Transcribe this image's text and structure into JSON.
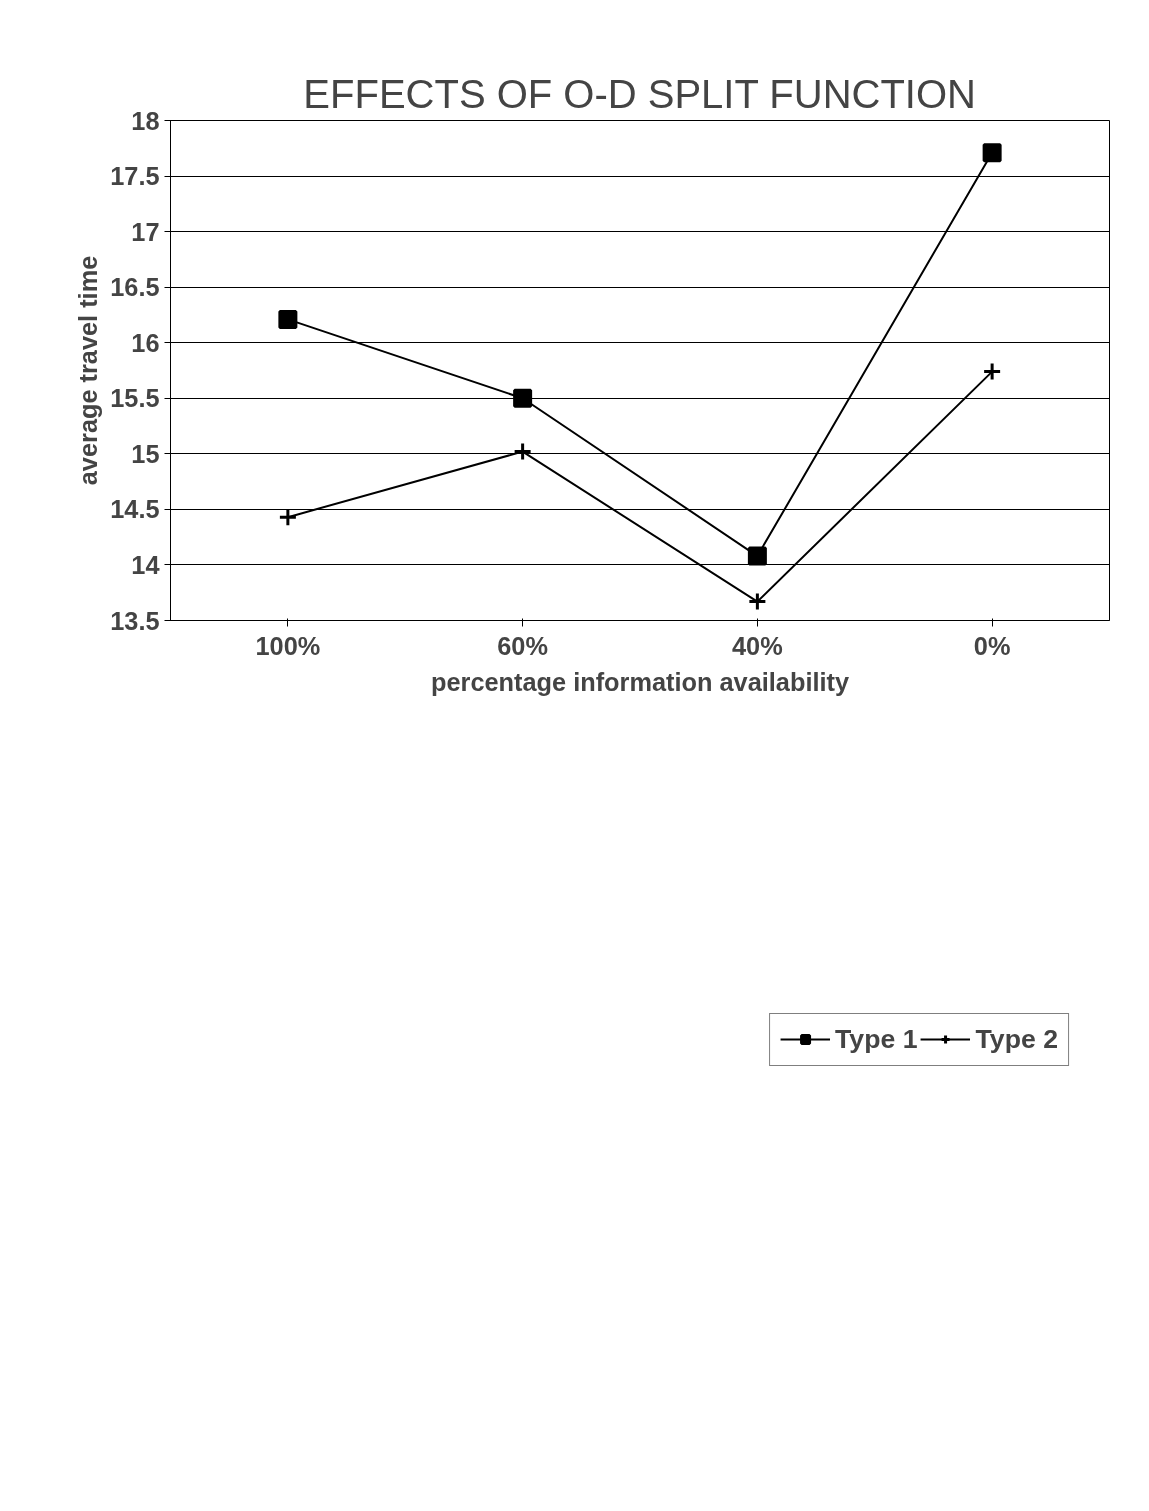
{
  "chart_data": {
    "type": "line",
    "title": "EFFECTS OF O-D SPLIT FUNCTION",
    "xlabel": "percentage information availability",
    "ylabel": "average travel time",
    "categories": [
      "100%",
      "60%",
      "40%",
      "0%"
    ],
    "series": [
      {
        "name": "Type 1",
        "color": "#000000",
        "marker": "square",
        "values": [
          16.21,
          15.5,
          14.08,
          17.71
        ]
      },
      {
        "name": "Type 2",
        "color": "#000000",
        "marker": "cross",
        "values": [
          14.43,
          15.02,
          13.67,
          15.74
        ]
      }
    ],
    "ylim": [
      13.5,
      18
    ],
    "yticks": [
      13.5,
      14,
      14.5,
      15,
      15.5,
      16,
      16.5,
      17,
      17.5,
      18
    ],
    "grid": "y",
    "legend": "bottom",
    "line_style": "solid"
  }
}
